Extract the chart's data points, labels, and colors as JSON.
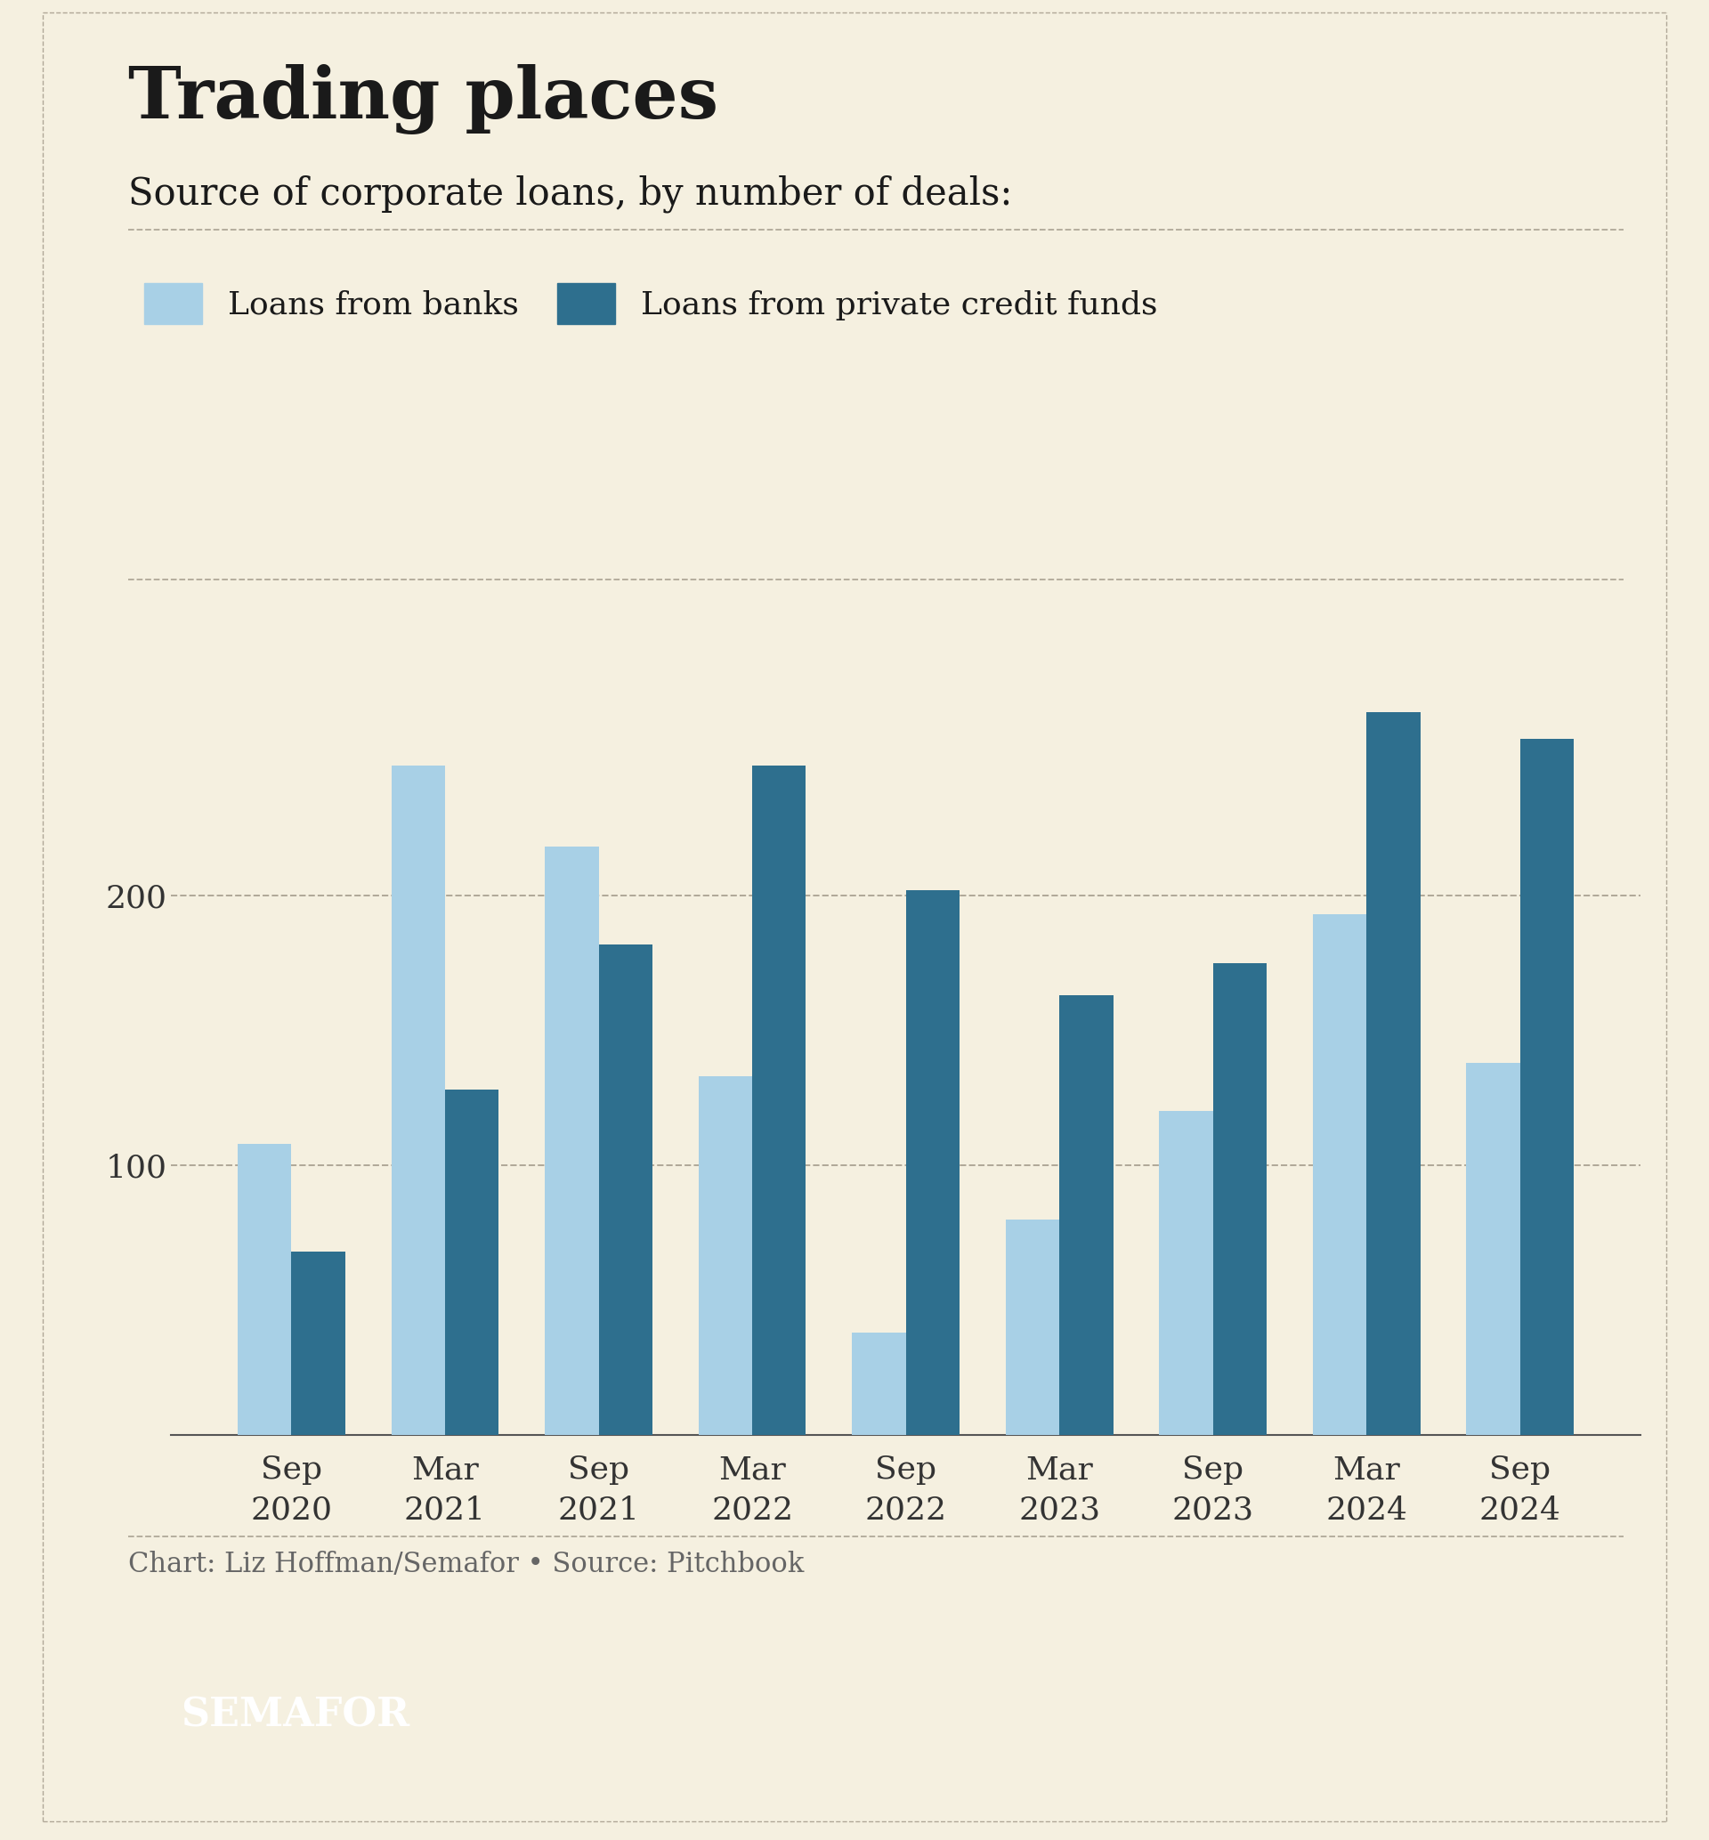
{
  "title": "Trading places",
  "subtitle": "Source of corporate loans, by number of deals:",
  "categories": [
    "Sep\n2020",
    "Mar\n2021",
    "Sep\n2021",
    "Mar\n2022",
    "Sep\n2022",
    "Mar\n2023",
    "Sep\n2023",
    "Mar\n2024",
    "Sep\n2024"
  ],
  "banks": [
    108,
    248,
    218,
    133,
    38,
    80,
    120,
    193,
    138
  ],
  "private": [
    68,
    128,
    182,
    248,
    202,
    163,
    175,
    268,
    258
  ],
  "bank_color": "#a8d0e6",
  "private_color": "#2e6f8e",
  "background_color": "#f5f0e0",
  "footer_text": "Chart: Liz Hoffman/Semafor • Source: Pitchbook",
  "legend_bank": "Loans from banks",
  "legend_private": "Loans from private credit funds",
  "yticks": [
    100,
    200
  ],
  "ylim": [
    0,
    300
  ],
  "bar_width": 0.35,
  "title_fontsize": 58,
  "subtitle_fontsize": 30,
  "legend_fontsize": 26,
  "tick_fontsize": 26,
  "footer_fontsize": 22,
  "semafor_fontsize": 32
}
